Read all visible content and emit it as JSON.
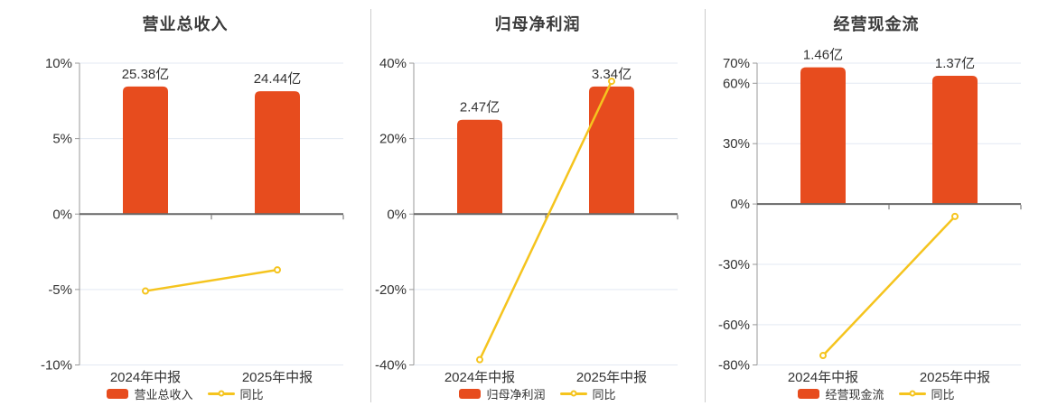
{
  "colors": {
    "bar": "#E74C1E",
    "line": "#F5C41E",
    "grid": "#E3E9F3",
    "zero_axis": "#666666",
    "y_axis": "#999999",
    "tick_label": "#333333",
    "value_label": "#333333",
    "title": "#3A3A3A",
    "divider": "#CCCCCC",
    "marker_fill": "#FFFFFF",
    "background": "#FFFFFF"
  },
  "chart_data": [
    {
      "type": "bar",
      "title": "营业总收入",
      "categories": [
        "2024年中报",
        "2025年中报"
      ],
      "series": [
        {
          "name": "营业总收入",
          "type": "bar",
          "unit": "亿",
          "values": [
            25.38,
            24.44
          ],
          "labels": [
            "25.38亿",
            "24.44亿"
          ]
        },
        {
          "name": "同比",
          "type": "line",
          "unit": "%",
          "values": [
            -5.1,
            -3.7
          ]
        }
      ],
      "xlabel": "",
      "ylabel": "",
      "y_unit": "%",
      "yticks": [
        10,
        5,
        0,
        -5,
        -10
      ],
      "ylim": [
        -10,
        10
      ],
      "grid": true,
      "legend_position": "bottom",
      "bar_fill_ratio": 0.845
    },
    {
      "type": "bar",
      "title": "归母净利润",
      "categories": [
        "2024年中报",
        "2025年中报"
      ],
      "series": [
        {
          "name": "归母净利润",
          "type": "bar",
          "unit": "亿",
          "values": [
            2.47,
            3.34
          ],
          "labels": [
            "2.47亿",
            "3.34亿"
          ]
        },
        {
          "name": "同比",
          "type": "line",
          "unit": "%",
          "values": [
            -38.6,
            35.2
          ]
        }
      ],
      "xlabel": "",
      "ylabel": "",
      "y_unit": "%",
      "yticks": [
        40,
        20,
        0,
        -20,
        -40
      ],
      "ylim": [
        -40,
        40
      ],
      "grid": true,
      "legend_position": "bottom",
      "bar_fill_ratio": 0.845
    },
    {
      "type": "bar",
      "title": "经营现金流",
      "categories": [
        "2024年中报",
        "2025年中报"
      ],
      "series": [
        {
          "name": "经营现金流",
          "type": "bar",
          "unit": "亿",
          "values": [
            1.46,
            1.37
          ],
          "labels": [
            "1.46亿",
            "1.37亿"
          ]
        },
        {
          "name": "同比",
          "type": "line",
          "unit": "%",
          "values": [
            -75.3,
            -6.2
          ]
        }
      ],
      "xlabel": "",
      "ylabel": "",
      "y_unit": "%",
      "yticks": [
        70,
        60,
        30,
        0,
        -30,
        -60,
        -80
      ],
      "ylim": [
        -80,
        70
      ],
      "grid": true,
      "legend_position": "bottom",
      "bar_fill_ratio": 0.97
    }
  ]
}
